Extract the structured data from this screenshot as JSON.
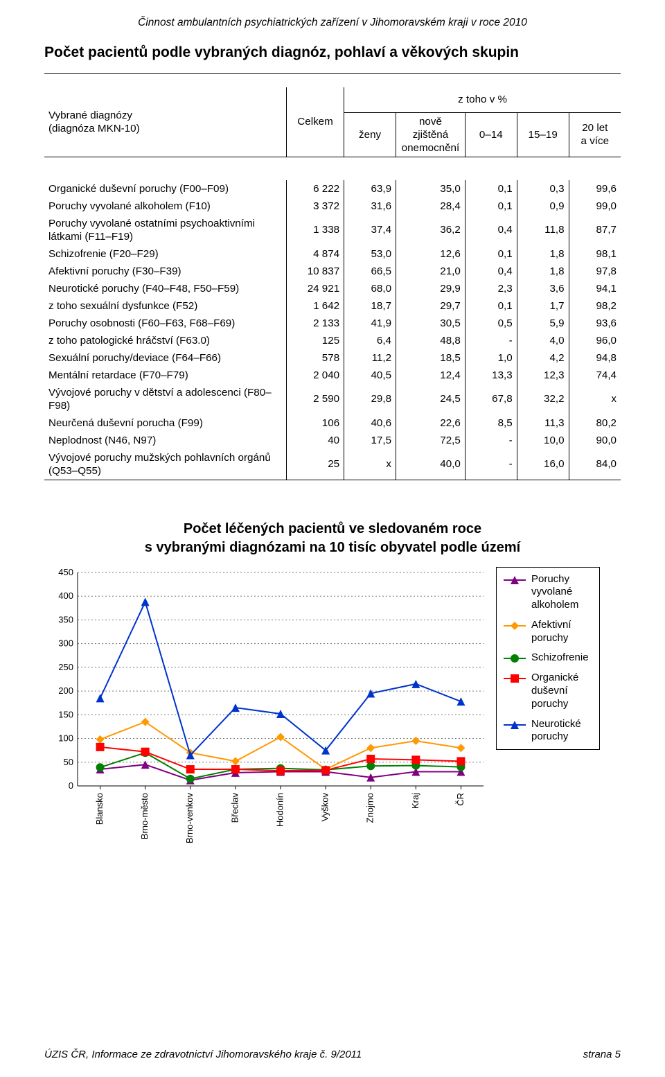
{
  "running_head": "Činnost ambulantních psychiatrických zařízení v Jihomoravském kraji v roce 2010",
  "title": "Počet pacientů podle vybraných diagnóz, pohlaví a věkových skupin",
  "table": {
    "header": {
      "col0_line1": "Vybrané diagnózy",
      "col0_line2": "(diagnóza MKN-10)",
      "col1": "Celkem",
      "group_top": "z toho v  %",
      "col2": "ženy",
      "col3_line1": "nově zjištěná",
      "col3_line2": "onemocnění",
      "col4": "0–14",
      "col5": "15–19",
      "col6_line1": "20 let",
      "col6_line2": "a více"
    },
    "rows": [
      {
        "label": "Organické duševní poruchy (F00–F09)",
        "indent": false,
        "c": [
          "6 222",
          "63,9",
          "35,0",
          "0,1",
          "0,3",
          "99,6"
        ]
      },
      {
        "label": "Poruchy vyvolané alkoholem (F10)",
        "indent": false,
        "c": [
          "3 372",
          "31,6",
          "28,4",
          "0,1",
          "0,9",
          "99,0"
        ]
      },
      {
        "label": "Poruchy vyvolané ostatními psychoaktivními látkami (F11–F19)",
        "indent": false,
        "c": [
          "1 338",
          "37,4",
          "36,2",
          "0,4",
          "11,8",
          "87,7"
        ]
      },
      {
        "label": "Schizofrenie (F20–F29)",
        "indent": false,
        "c": [
          "4 874",
          "53,0",
          "12,6",
          "0,1",
          "1,8",
          "98,1"
        ]
      },
      {
        "label": "Afektivní poruchy (F30–F39)",
        "indent": false,
        "c": [
          "10 837",
          "66,5",
          "21,0",
          "0,4",
          "1,8",
          "97,8"
        ]
      },
      {
        "label": "Neurotické poruchy (F40–F48, F50–F59)",
        "indent": false,
        "c": [
          "24 921",
          "68,0",
          "29,9",
          "2,3",
          "3,6",
          "94,1"
        ]
      },
      {
        "label": "z toho sexuální dysfunkce (F52)",
        "indent": true,
        "c": [
          "1 642",
          "18,7",
          "29,7",
          "0,1",
          "1,7",
          "98,2"
        ]
      },
      {
        "label": "Poruchy osobnosti (F60–F63, F68–F69)",
        "indent": false,
        "c": [
          "2 133",
          "41,9",
          "30,5",
          "0,5",
          "5,9",
          "93,6"
        ]
      },
      {
        "label": "z toho patologické hráčství (F63.0)",
        "indent": true,
        "c": [
          "125",
          "6,4",
          "48,8",
          "- ",
          "4,0",
          "96,0"
        ]
      },
      {
        "label": "Sexuální poruchy/deviace (F64–F66)",
        "indent": false,
        "c": [
          "578",
          "11,2",
          "18,5",
          "1,0",
          "4,2",
          "94,8"
        ]
      },
      {
        "label": "Mentální retardace (F70–F79)",
        "indent": false,
        "c": [
          "2 040",
          "40,5",
          "12,4",
          "13,3",
          "12,3",
          "74,4"
        ]
      },
      {
        "label": "Vývojové poruchy v dětství a adolescenci (F80–F98)",
        "indent": false,
        "c": [
          "2 590",
          "29,8",
          "24,5",
          "67,8",
          "32,2",
          "x"
        ]
      },
      {
        "label": "Neurčená duševní porucha (F99)",
        "indent": false,
        "c": [
          "106",
          "40,6",
          "22,6",
          "8,5",
          "11,3",
          "80,2"
        ]
      },
      {
        "label": "Neplodnost (N46, N97)",
        "indent": false,
        "c": [
          "40",
          "17,5",
          "72,5",
          "- ",
          "10,0",
          "90,0"
        ]
      },
      {
        "label": "Vývojové poruchy mužských pohlavních orgánů (Q53–Q55)",
        "indent": false,
        "c": [
          "25",
          "x",
          "40,0",
          "- ",
          "16,0",
          "84,0"
        ]
      }
    ]
  },
  "chart": {
    "title_line1": "Počet léčených pacientů ve sledovaném roce",
    "title_line2": "s vybranými diagnózami na 10 tisíc obyvatel podle území",
    "categories": [
      "Blansko",
      "Brno-město",
      "Brno-venkov",
      "Břeclav",
      "Hodonín",
      "Vyškov",
      "Znojmo",
      "Kraj",
      "ČR"
    ],
    "y_ticks": [
      0,
      50,
      100,
      150,
      200,
      250,
      300,
      350,
      400,
      450
    ],
    "ylim": [
      0,
      450
    ],
    "grid_color": "#777777",
    "grid_dash": "2,3",
    "axis_color": "#000000",
    "background_color": "#ffffff",
    "axis_fontsize": 13,
    "cat_fontsize": 13,
    "line_width": 2.0,
    "marker_size": 6,
    "series": [
      {
        "name": "Poruchy vyvolané alkoholem",
        "label_lines": [
          "Poruchy",
          "vyvolané",
          "alkoholem"
        ],
        "color": "#800080",
        "marker": "triangle",
        "values": [
          35,
          45,
          12,
          28,
          30,
          30,
          18,
          30,
          30
        ]
      },
      {
        "name": "Afektivní poruchy",
        "label_lines": [
          "Afektivní",
          "poruchy"
        ],
        "color": "#ff9900",
        "marker": "diamond",
        "values": [
          98,
          135,
          70,
          52,
          103,
          35,
          80,
          95,
          80
        ]
      },
      {
        "name": "Schizofrenie",
        "label_lines": [
          "Schizofrenie"
        ],
        "color": "#008000",
        "marker": "circle",
        "values": [
          39,
          70,
          15,
          35,
          37,
          34,
          42,
          43,
          40
        ]
      },
      {
        "name": "Organické duševní poruchy",
        "label_lines": [
          "Organické",
          "duševní",
          "poruchy"
        ],
        "color": "#ff0000",
        "marker": "square",
        "values": [
          82,
          72,
          35,
          35,
          32,
          33,
          57,
          55,
          52
        ]
      },
      {
        "name": "Neurotické poruchy",
        "label_lines": [
          "Neurotické",
          "poruchy"
        ],
        "color": "#0033cc",
        "marker": "triangle",
        "values": [
          185,
          388,
          65,
          165,
          152,
          75,
          195,
          215,
          178
        ]
      }
    ]
  },
  "footer_left": "ÚZIS ČR, Informace ze zdravotnictví Jihomoravského kraje č. 9/2011",
  "footer_right": "strana 5"
}
